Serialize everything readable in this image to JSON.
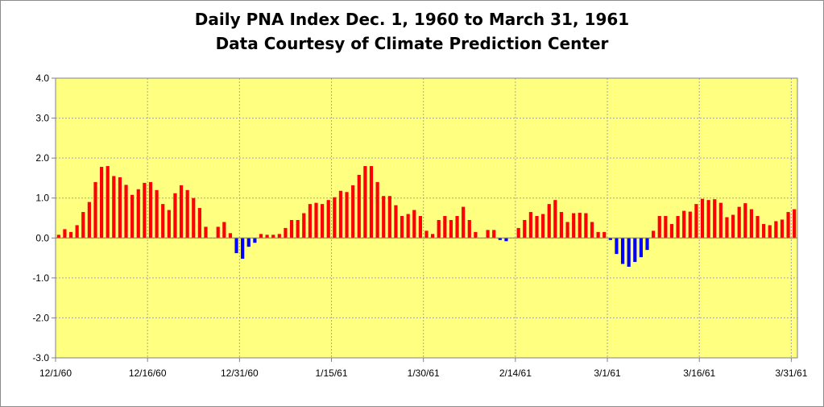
{
  "chart_data": {
    "type": "bar",
    "title": "Daily PNA Index Dec. 1, 1960 to March 31, 1961",
    "subtitle": "Data Courtesy of Climate Prediction Center",
    "xlabel": "",
    "ylabel": "",
    "ylim": [
      -3.0,
      4.0
    ],
    "y_ticks": [
      "4.0",
      "3.0",
      "2.0",
      "1.0",
      "0.0",
      "-1.0",
      "-2.0",
      "-3.0"
    ],
    "y_tick_values": [
      4,
      3,
      2,
      1,
      0,
      -1,
      -2,
      -3
    ],
    "x_ticks": [
      "12/1/60",
      "12/16/60",
      "12/31/60",
      "1/15/61",
      "1/30/61",
      "2/14/61",
      "3/1/61",
      "3/16/61",
      "3/31/61"
    ],
    "x_tick_days": [
      0,
      15,
      30,
      45,
      60,
      75,
      90,
      105,
      120
    ],
    "grid": true,
    "plot_background": "#ffff80",
    "positive_color": "#ff0000",
    "negative_color": "#0000ff",
    "values": [
      0.08,
      0.22,
      0.15,
      0.32,
      0.65,
      0.9,
      1.4,
      1.78,
      1.8,
      1.55,
      1.52,
      1.33,
      1.08,
      1.22,
      1.38,
      1.4,
      1.2,
      0.85,
      0.7,
      1.12,
      1.32,
      1.2,
      1.0,
      0.75,
      0.28,
      0.0,
      0.28,
      0.4,
      0.12,
      -0.38,
      -0.52,
      -0.22,
      -0.12,
      0.1,
      0.08,
      0.08,
      0.1,
      0.25,
      0.45,
      0.45,
      0.62,
      0.85,
      0.88,
      0.85,
      0.95,
      1.02,
      1.18,
      1.15,
      1.32,
      1.58,
      1.8,
      1.8,
      1.4,
      1.05,
      1.05,
      0.82,
      0.55,
      0.6,
      0.7,
      0.55,
      0.18,
      0.1,
      0.45,
      0.55,
      0.45,
      0.55,
      0.78,
      0.45,
      0.15,
      0.0,
      0.2,
      0.2,
      -0.05,
      -0.08,
      0.0,
      0.25,
      0.45,
      0.65,
      0.55,
      0.6,
      0.85,
      0.95,
      0.65,
      0.4,
      0.62,
      0.63,
      0.62,
      0.4,
      0.15,
      0.15,
      -0.05,
      -0.4,
      -0.65,
      -0.72,
      -0.6,
      -0.48,
      -0.3,
      0.18,
      0.55,
      0.55,
      0.35,
      0.55,
      0.68,
      0.66,
      0.85,
      0.98,
      0.95,
      0.97,
      0.88,
      0.52,
      0.58,
      0.78,
      0.87,
      0.72,
      0.55,
      0.35,
      0.32,
      0.42,
      0.46,
      0.65,
      0.72
    ]
  }
}
